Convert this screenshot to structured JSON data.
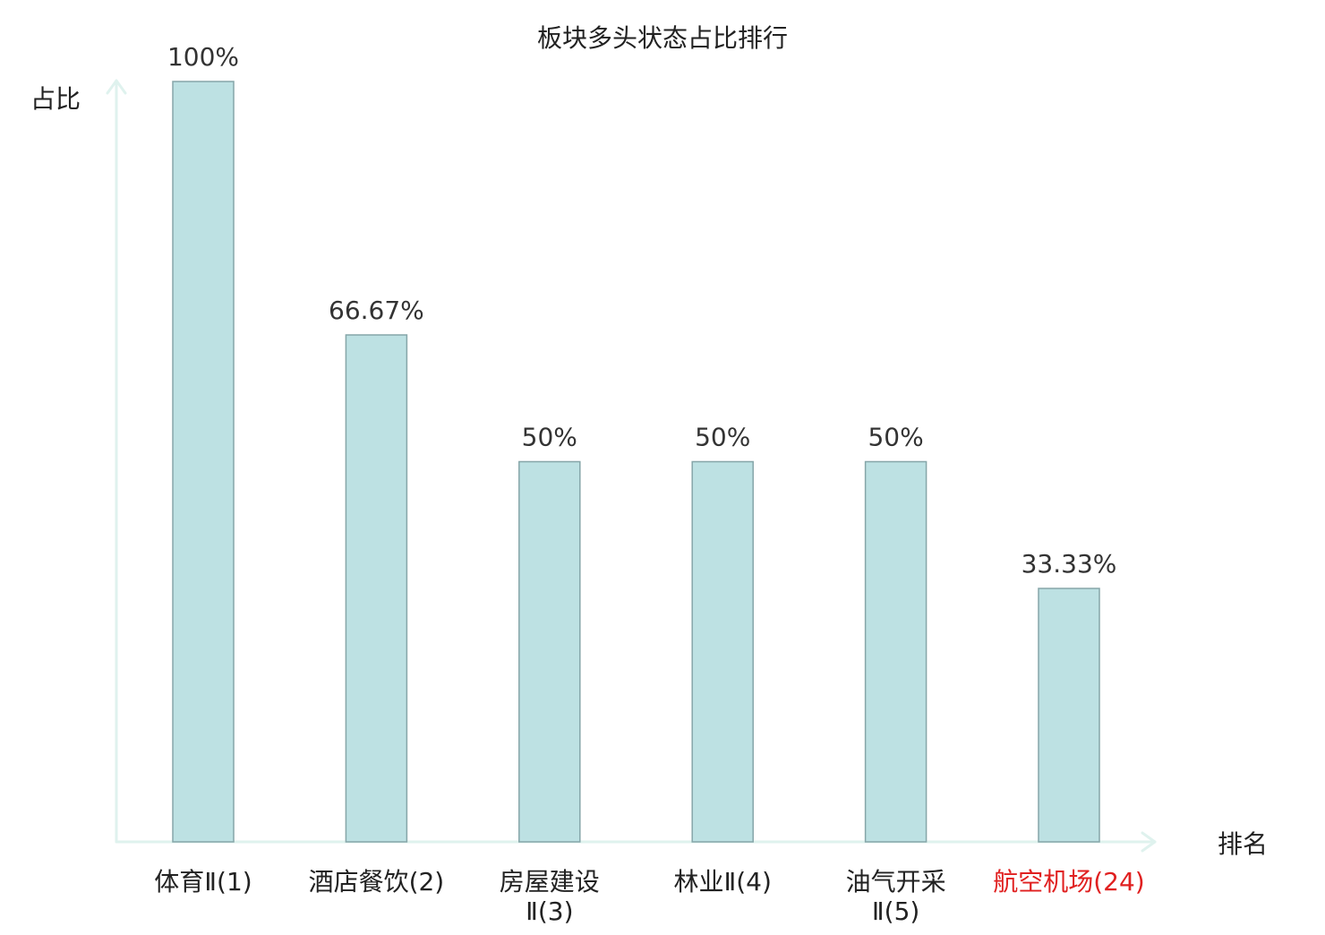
{
  "chart_data": {
    "type": "bar",
    "title": "板块多头状态占比排行",
    "ylabel": "占比",
    "xlabel": "排名",
    "categories": [
      "体育Ⅱ(1)",
      "酒店餐饮(2)",
      "房屋建设Ⅱ(3)",
      "林业Ⅱ(4)",
      "油气开采Ⅱ(5)",
      "航空机场(24)"
    ],
    "category_lines": [
      [
        "体育Ⅱ(1)"
      ],
      [
        "酒店餐饮(2)"
      ],
      [
        "房屋建设",
        "Ⅱ(3)"
      ],
      [
        "林业Ⅱ(4)"
      ],
      [
        "油气开采",
        "Ⅱ(5)"
      ],
      [
        "航空机场(24)"
      ]
    ],
    "highlight_category_index": 5,
    "series": [
      {
        "values": [
          100,
          66.67,
          50,
          50,
          50,
          33.33
        ]
      }
    ],
    "value_labels": [
      "100%",
      "66.67%",
      "50%",
      "50%",
      "50%",
      "33.33%"
    ],
    "ylim": [
      0,
      100
    ],
    "grid": false,
    "legend": "none",
    "colors": {
      "bar_fill": "#bde1e3",
      "bar_stroke": "#86a6a9",
      "axis": "#dff2ee",
      "text": "#222222",
      "value_text": "#333333",
      "highlight_text": "#e02020"
    }
  }
}
